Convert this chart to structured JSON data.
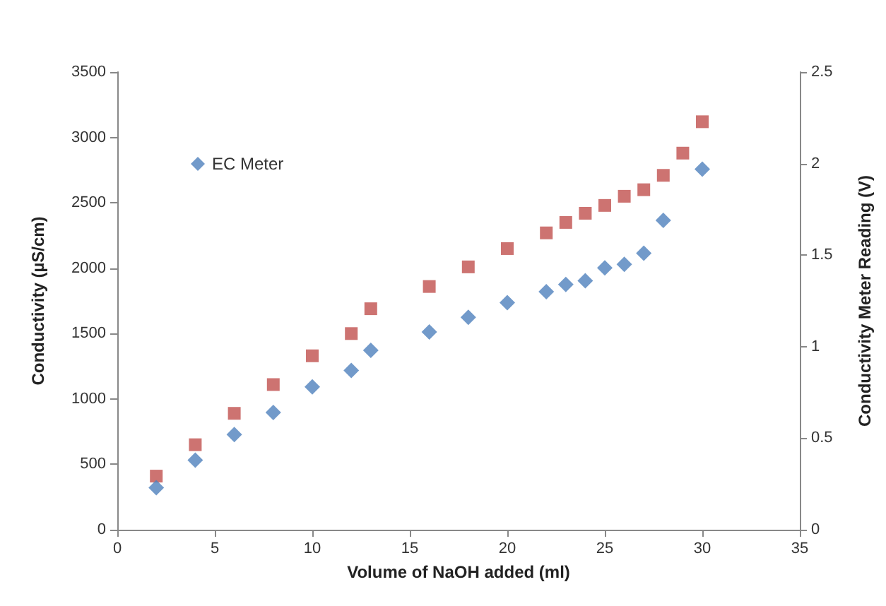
{
  "chart_data": {
    "type": "scatter",
    "xlabel": "Volume of NaOH added (ml)",
    "ylabel": "Conductivity (µS/cm)",
    "y2label": "Conductivity Meter Reading (V)",
    "xlim": [
      0,
      35
    ],
    "xticks": [
      0,
      5,
      10,
      15,
      20,
      25,
      30,
      35
    ],
    "ylim": [
      0,
      3500
    ],
    "yticks": [
      0,
      500,
      1000,
      1500,
      2000,
      2500,
      3000,
      3500
    ],
    "y2lim": [
      0,
      2.5
    ],
    "y2ticks": [
      0,
      0.5,
      1,
      1.5,
      2,
      2.5
    ],
    "grid": false,
    "legend": "top left",
    "series": [
      {
        "color": "#c0504d",
        "marker": "square",
        "x": [
          2,
          4,
          6,
          8,
          10,
          12,
          13,
          16,
          18,
          20,
          22,
          23,
          24,
          25,
          26,
          27,
          28,
          29,
          30
        ],
        "values": [
          410,
          650,
          890,
          1110,
          1330,
          1500,
          1690,
          1860,
          2010,
          2150,
          2270,
          2350,
          2420,
          2480,
          2550,
          2600,
          2710,
          2880,
          3120
        ]
      },
      {
        "name": "EC Meter",
        "color": "#4f81bd",
        "marker": "diamond",
        "axis": "y2",
        "x": [
          2,
          4,
          6,
          8,
          10,
          12,
          13,
          16,
          18,
          20,
          22,
          23,
          24,
          25,
          26,
          27,
          28,
          30
        ],
        "values": [
          0.23,
          0.38,
          0.52,
          0.64,
          0.78,
          0.87,
          0.98,
          1.08,
          1.16,
          1.24,
          1.3,
          1.34,
          1.36,
          1.43,
          1.45,
          1.51,
          1.69,
          1.97
        ]
      }
    ]
  }
}
